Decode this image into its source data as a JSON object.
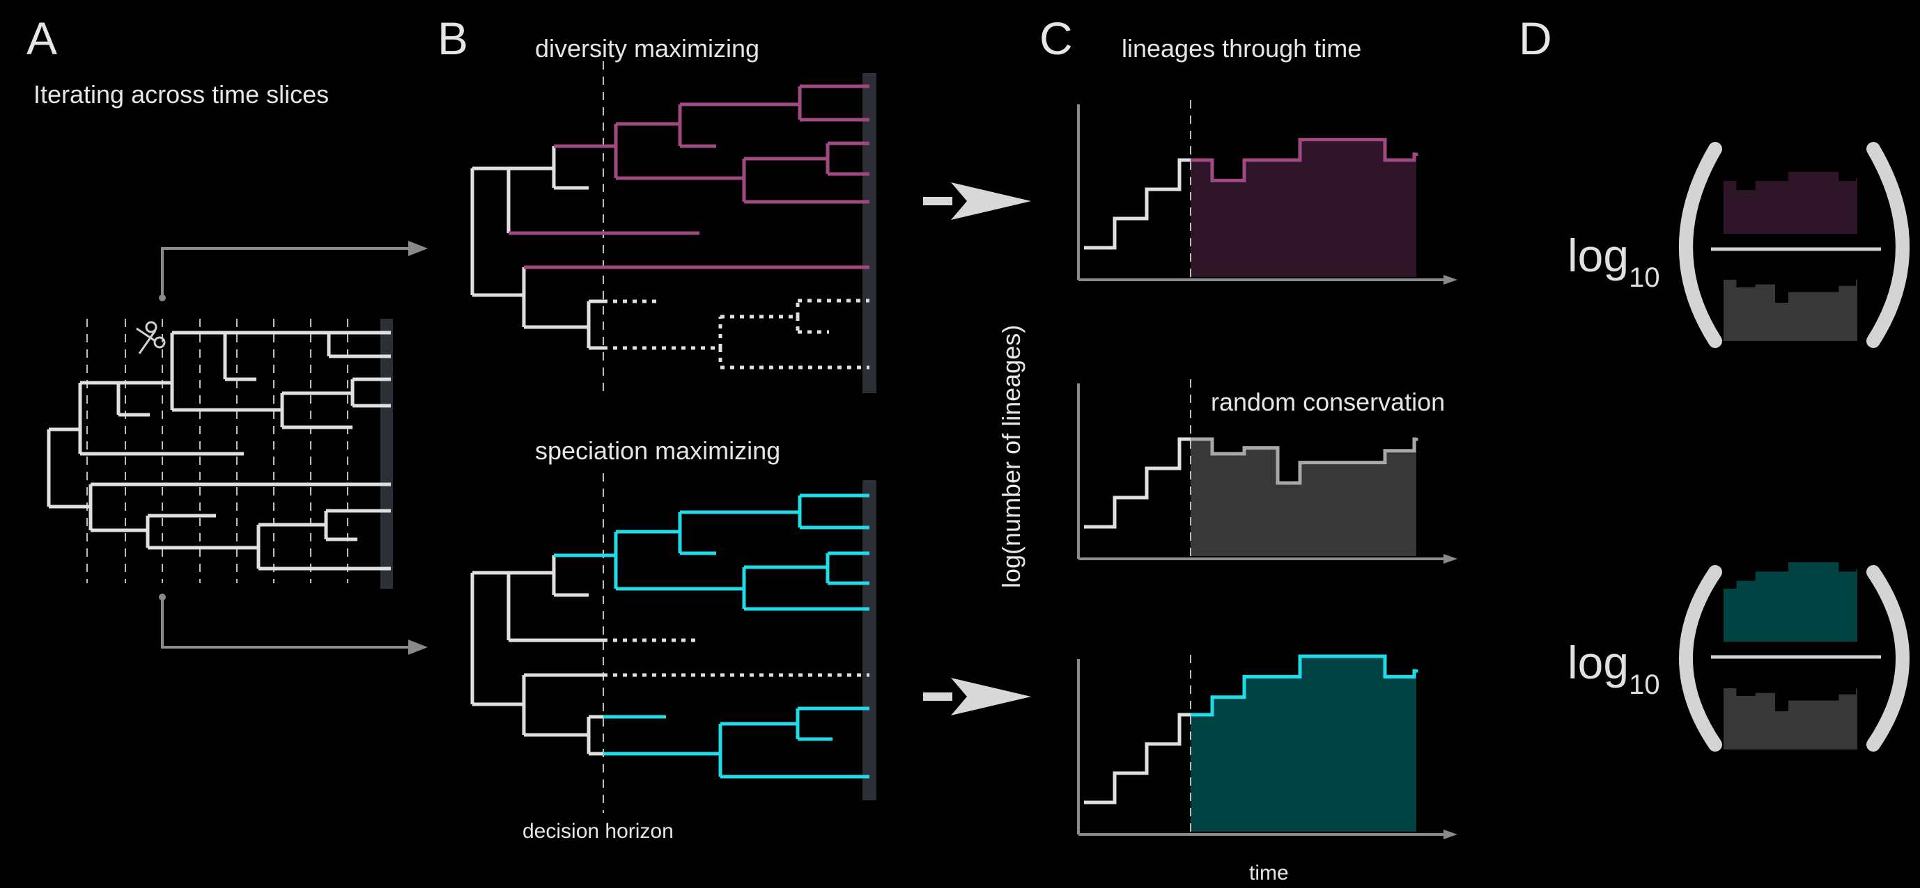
{
  "panels": {
    "a": {
      "letter": "A",
      "title": "Iterating across time slices"
    },
    "b": {
      "letter": "B",
      "title_top": "diversity maximizing",
      "title_bottom": "speciation maximizing",
      "horizon_label": "decision horizon"
    },
    "c": {
      "letter": "C",
      "title": "lineages through time",
      "random_label": "random conservation",
      "ylabel": "log(number of lineages)",
      "xlabel": "time"
    },
    "d": {
      "letter": "D",
      "log_text": "log",
      "log_sub": "10"
    }
  },
  "icons": {
    "scissors": "scissors-icon",
    "arrow": "right-arrow-icon"
  },
  "colors": {
    "background": "#000000",
    "tree": "#e0e0e0",
    "diversity": "#a14a82",
    "diversity_fill": "#2e1628",
    "speciation": "#1fdde6",
    "speciation_fill": "#014343",
    "random": "#a8a8a8",
    "random_fill": "#383838",
    "axis": "#8a8a8a",
    "tip_bar": "#2c2f36"
  },
  "chart_data": [
    {
      "type": "line",
      "title": "lineages through time",
      "series": [
        {
          "name": "diversity maximizing",
          "shape": "step",
          "values": [
            1,
            2,
            3,
            4,
            4,
            3.3,
            4,
            4,
            4.7,
            4.7,
            4,
            4.2
          ]
        }
      ],
      "xlabel": "time",
      "ylabel": "log(number of lineages)",
      "grid": false
    },
    {
      "type": "line",
      "series": [
        {
          "name": "random conservation",
          "shape": "step",
          "values": [
            1,
            2,
            3,
            4,
            4,
            3.5,
            3.7,
            2.5,
            3.2,
            3.2,
            3.6,
            4
          ]
        }
      ],
      "xlabel": "time",
      "ylabel": "log(number of lineages)",
      "grid": false
    },
    {
      "type": "line",
      "series": [
        {
          "name": "speciation maximizing",
          "shape": "step",
          "values": [
            1,
            2,
            3,
            4,
            4,
            4.6,
            5.3,
            5.3,
            6,
            6,
            5.3,
            5.5
          ]
        }
      ],
      "xlabel": "time",
      "ylabel": "log(number of lineages)",
      "grid": false
    }
  ]
}
